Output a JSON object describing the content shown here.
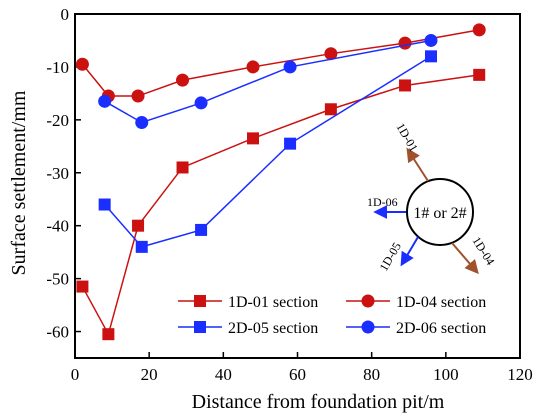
{
  "chart_data": {
    "type": "line",
    "xlabel": "Distance from foundation pit/m",
    "ylabel": "Surface settlement/mm",
    "xlim": [
      0,
      120
    ],
    "ylim": [
      -65,
      0
    ],
    "x_ticks": [
      "0",
      "20",
      "40",
      "60",
      "80",
      "100",
      "120"
    ],
    "y_ticks": [
      "0",
      "-10",
      "-20",
      "-30",
      "-40",
      "-50",
      "-60"
    ],
    "grid": false,
    "legend_position": "bottom-center",
    "series": [
      {
        "name": "1D-01 section",
        "marker": "square",
        "color": "#cc1111",
        "x": [
          2,
          9,
          17,
          29,
          48,
          69,
          89,
          109
        ],
        "y": [
          -51.5,
          -60.5,
          -40,
          -29,
          -23.5,
          -18,
          -13.5,
          -11.5
        ]
      },
      {
        "name": "1D-04 section",
        "marker": "circle",
        "color": "#cc1111",
        "x": [
          2,
          9,
          17,
          29,
          48,
          69,
          89,
          109
        ],
        "y": [
          -9.5,
          -15.5,
          -15.5,
          -12.5,
          -10,
          -7.5,
          -5.5,
          -3
        ]
      },
      {
        "name": "2D-05 section",
        "marker": "square",
        "color": "#1a2eff",
        "x": [
          8,
          18,
          34,
          58,
          96
        ],
        "y": [
          -36,
          -44,
          -40.8,
          -24.5,
          -8
        ]
      },
      {
        "name": "2D-06 section",
        "marker": "circle",
        "color": "#1a2eff",
        "x": [
          8,
          18,
          34,
          58,
          96
        ],
        "y": [
          -16.5,
          -20.5,
          -16.8,
          -10,
          -5
        ]
      }
    ],
    "inset": {
      "center_label": "1# or 2#",
      "arrows": [
        {
          "label": "1D-01",
          "color": "#a0522d"
        },
        {
          "label": "1D-06",
          "color": "#1a2eff"
        },
        {
          "label": "1D-05",
          "color": "#1a2eff"
        },
        {
          "label": "1D-04",
          "color": "#a0522d"
        }
      ]
    }
  }
}
